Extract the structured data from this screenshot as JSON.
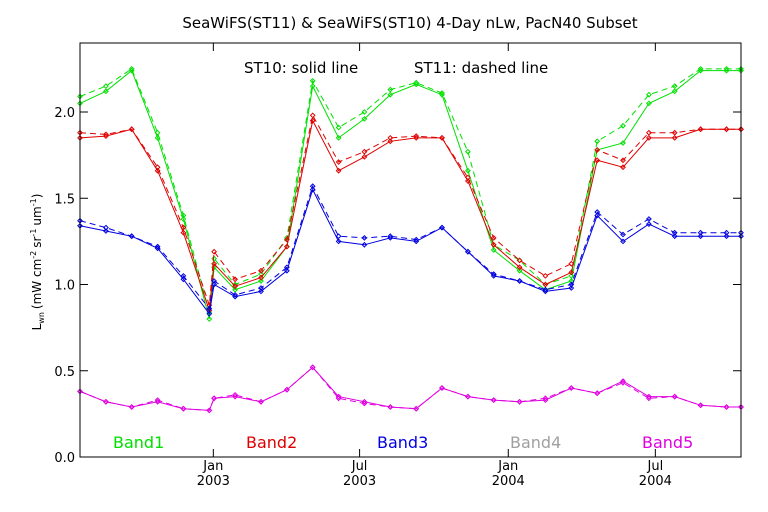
{
  "chart_data": {
    "type": "line",
    "title": "SeaWiFS(ST11) & SeaWiFS(ST10) 4-Day nLw, PacN40 Subset",
    "annotations": [
      "ST10: solid line",
      "ST11: dashed line"
    ],
    "ylabel": "L_wn (mW cm^-2 sr^-1 um^-1)",
    "ylabel_parts": {
      "base": "L",
      "sub": "wn",
      "open": "(mW cm",
      "e1": "-2",
      "sr": "sr",
      "e2": "-1",
      "um": "um",
      "e3": "-1",
      "close": ")"
    },
    "xlabel": "",
    "ylim": [
      0.0,
      2.4
    ],
    "xlim": [
      "2002-07-20",
      "2004-10-15"
    ],
    "yticks": [
      0.0,
      0.5,
      1.0,
      1.5,
      2.0
    ],
    "ytick_labels": [
      "0.0",
      "0.5",
      "1.0",
      "1.5",
      "2.0"
    ],
    "xticks": [
      {
        "date": "2003-01-01",
        "line1": "Jan",
        "line2": "2003"
      },
      {
        "date": "2003-07-01",
        "line1": "Jul",
        "line2": "2003"
      },
      {
        "date": "2004-01-01",
        "line1": "Jan",
        "line2": "2004"
      },
      {
        "date": "2004-07-01",
        "line1": "Jul",
        "line2": "2004"
      }
    ],
    "x": [
      "2002-07-20",
      "2002-08-21",
      "2002-09-22",
      "2002-10-24",
      "2002-11-25",
      "2002-12-27",
      "2003-01-02",
      "2003-01-28",
      "2003-03-01",
      "2003-04-02",
      "2003-05-04",
      "2003-06-05",
      "2003-07-07",
      "2003-08-08",
      "2003-09-09",
      "2003-10-11",
      "2003-11-12",
      "2003-12-14",
      "2004-01-15",
      "2004-02-16",
      "2004-03-19",
      "2004-04-20",
      "2004-05-22",
      "2004-06-23",
      "2004-07-25",
      "2004-08-26",
      "2004-09-27",
      "2004-10-15"
    ],
    "series": [
      {
        "name": "Band1",
        "color": "#00e000",
        "line": "solid",
        "values": [
          2.05,
          2.12,
          2.24,
          1.85,
          1.38,
          0.8,
          1.1,
          0.97,
          1.02,
          1.22,
          2.15,
          1.85,
          1.96,
          2.1,
          2.16,
          2.1,
          1.66,
          1.2,
          1.08,
          0.97,
          1.02,
          1.78,
          1.82,
          2.05,
          2.12,
          2.24,
          2.24,
          2.24
        ]
      },
      {
        "name": "Band1",
        "color": "#00e000",
        "line": "dashed",
        "values": [
          2.09,
          2.15,
          2.25,
          1.88,
          1.4,
          0.84,
          1.15,
          1.0,
          1.06,
          1.27,
          2.18,
          1.91,
          2.0,
          2.13,
          2.17,
          2.11,
          1.77,
          1.23,
          1.14,
          1.0,
          1.05,
          1.83,
          1.92,
          2.1,
          2.15,
          2.25,
          2.25,
          2.25
        ]
      },
      {
        "name": "Band2",
        "color": "#e00000",
        "line": "solid",
        "values": [
          1.85,
          1.86,
          1.9,
          1.66,
          1.3,
          0.85,
          1.12,
          0.99,
          1.04,
          1.22,
          1.95,
          1.66,
          1.74,
          1.83,
          1.85,
          1.85,
          1.6,
          1.23,
          1.1,
          1.0,
          1.07,
          1.72,
          1.68,
          1.85,
          1.85,
          1.9,
          1.9,
          1.9
        ]
      },
      {
        "name": "Band2",
        "color": "#e00000",
        "line": "dashed",
        "values": [
          1.88,
          1.87,
          1.9,
          1.68,
          1.33,
          0.88,
          1.19,
          1.03,
          1.08,
          1.26,
          1.98,
          1.71,
          1.77,
          1.85,
          1.86,
          1.85,
          1.62,
          1.27,
          1.14,
          1.05,
          1.12,
          1.78,
          1.72,
          1.88,
          1.88,
          1.9,
          1.9,
          1.9
        ]
      },
      {
        "name": "Band3",
        "color": "#0000e0",
        "line": "solid",
        "values": [
          1.34,
          1.31,
          1.28,
          1.21,
          1.03,
          0.83,
          1.0,
          0.93,
          0.96,
          1.08,
          1.55,
          1.25,
          1.23,
          1.27,
          1.25,
          1.33,
          1.19,
          1.05,
          1.02,
          0.96,
          0.98,
          1.4,
          1.25,
          1.35,
          1.28,
          1.28,
          1.28,
          1.28
        ]
      },
      {
        "name": "Band3",
        "color": "#0000e0",
        "line": "dashed",
        "values": [
          1.37,
          1.33,
          1.28,
          1.22,
          1.05,
          0.86,
          1.02,
          0.94,
          0.98,
          1.1,
          1.57,
          1.28,
          1.27,
          1.28,
          1.26,
          1.33,
          1.19,
          1.06,
          1.02,
          0.97,
          1.0,
          1.42,
          1.29,
          1.38,
          1.3,
          1.3,
          1.3,
          1.3
        ]
      },
      {
        "name": "Band5",
        "color": "#e000e0",
        "line": "solid",
        "values": [
          0.38,
          0.32,
          0.29,
          0.32,
          0.28,
          0.27,
          0.34,
          0.35,
          0.32,
          0.39,
          0.52,
          0.35,
          0.32,
          0.29,
          0.28,
          0.4,
          0.35,
          0.33,
          0.32,
          0.33,
          0.4,
          0.37,
          0.44,
          0.35,
          0.35,
          0.3,
          0.29,
          0.29
        ]
      },
      {
        "name": "Band5",
        "color": "#e000e0",
        "line": "dashed",
        "values": [
          0.38,
          0.32,
          0.29,
          0.33,
          0.28,
          0.27,
          0.34,
          0.36,
          0.32,
          0.39,
          0.52,
          0.34,
          0.31,
          0.29,
          0.28,
          0.4,
          0.35,
          0.33,
          0.32,
          0.34,
          0.4,
          0.37,
          0.43,
          0.34,
          0.35,
          0.3,
          0.29,
          0.29
        ]
      }
    ],
    "legend": [
      {
        "label": "Band1",
        "color": "#00e000"
      },
      {
        "label": "Band2",
        "color": "#e00000"
      },
      {
        "label": "Band3",
        "color": "#0000e0"
      },
      {
        "label": "Band4",
        "color": "#a0a0a0"
      },
      {
        "label": "Band5",
        "color": "#e000e0"
      }
    ],
    "legend_position": "bottom-inside",
    "grid": false
  }
}
